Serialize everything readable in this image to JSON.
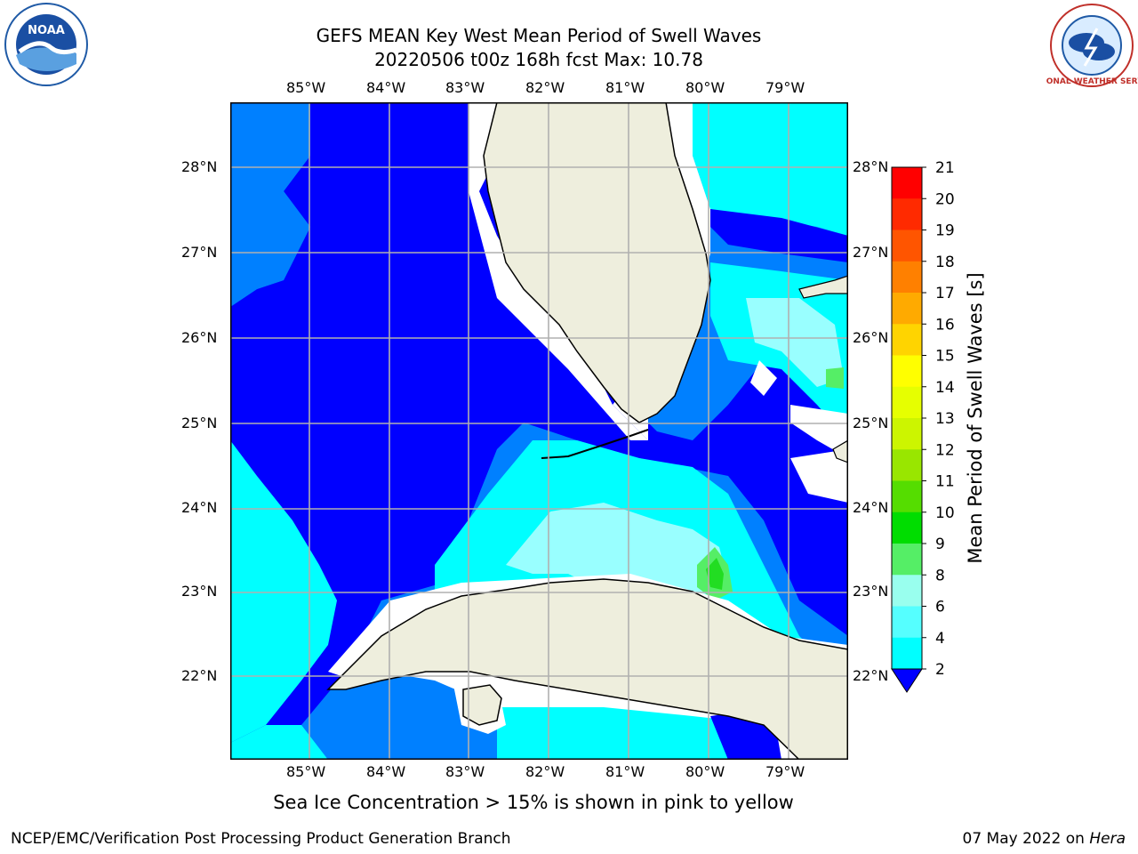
{
  "title_line1": "GEFS MEAN Key West Mean Period of Swell Waves",
  "title_line2": "20220506 t00z 168h fcst   Max: 10.78",
  "note": "Sea Ice Concentration > 15% is shown in pink to yellow",
  "footer_left": "NCEP/EMC/Verification Post Processing Product Generation Branch",
  "footer_right_date": "07 May 2022 on",
  "footer_right_host": "Hera",
  "logos": {
    "left": "NOAA",
    "right": "NATIONAL WEATHER SERVICE"
  },
  "lon_labels": [
    "85°W",
    "84°W",
    "83°W",
    "82°W",
    "81°W",
    "80°W",
    "79°W"
  ],
  "lat_labels": [
    "28°N",
    "27°N",
    "26°N",
    "25°N",
    "24°N",
    "23°N",
    "22°N"
  ],
  "colorbar": {
    "label": "Mean Period of Swell Waves [s]",
    "ticks": [
      "21",
      "20",
      "19",
      "18",
      "17",
      "16",
      "15",
      "14",
      "13",
      "12",
      "11",
      "10",
      "9",
      "8",
      "6",
      "4",
      "2"
    ],
    "colors": [
      "#ff0000",
      "#ff2a00",
      "#ff5500",
      "#ff8000",
      "#ffaa00",
      "#ffd400",
      "#ffff00",
      "#e6ff00",
      "#ccf500",
      "#99e600",
      "#55dd00",
      "#00dd00",
      "#55ee66",
      "#99ffee",
      "#55ffff",
      "#00ffff",
      "#0080ff",
      "#0000ff"
    ]
  },
  "colors": {
    "land": "#eeeedd",
    "deep": "#0000ff",
    "mid": "#0080ff",
    "cyan": "#00ffff",
    "lightcyan": "#99ffff",
    "green": "#22dd22",
    "grid": "#b0b0b0"
  }
}
